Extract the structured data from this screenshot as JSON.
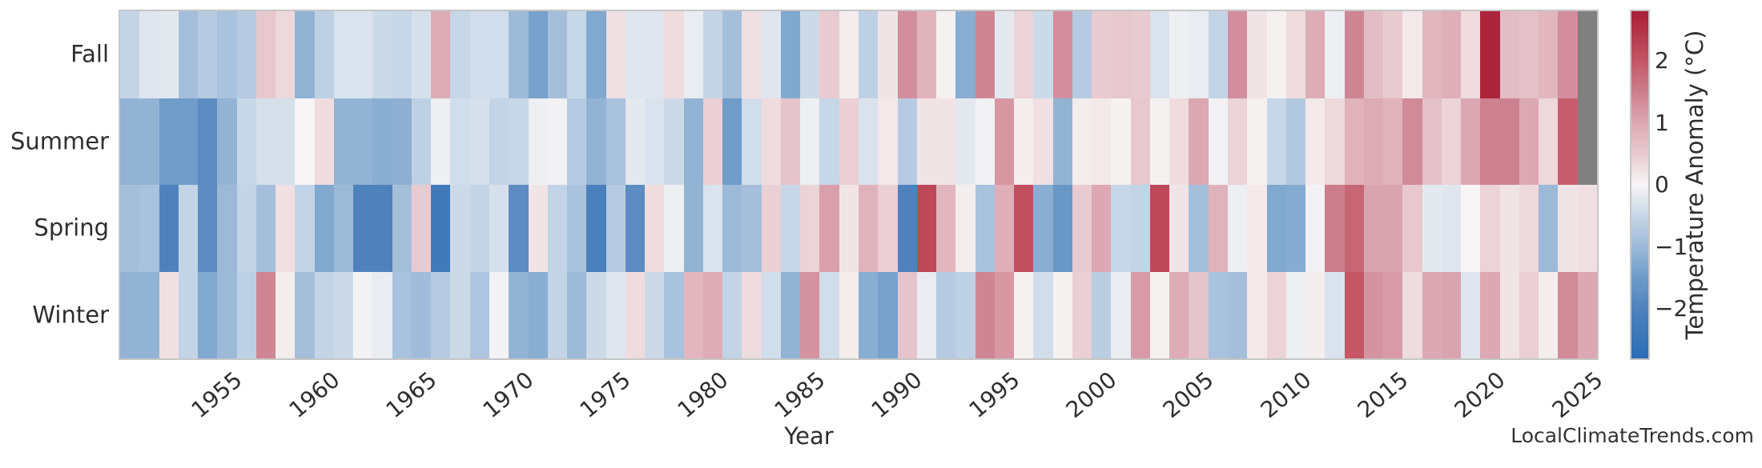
{
  "watermark": "LocalClimateTrends.com",
  "colors": {
    "background": "#ffffff",
    "frame": "#c6c6c6",
    "text": "#2e2e2e",
    "missing": "#808080",
    "colormap_anchors": [
      {
        "value": -2.8,
        "color": "#2b6cb5"
      },
      {
        "value": -2.0,
        "color": "#4f82bc"
      },
      {
        "value": -1.5,
        "color": "#6f9cc8"
      },
      {
        "value": -1.0,
        "color": "#9cb9d8"
      },
      {
        "value": -0.5,
        "color": "#c7d7e7"
      },
      {
        "value": 0.0,
        "color": "#f7f5f5"
      },
      {
        "value": 0.5,
        "color": "#e8cbd1"
      },
      {
        "value": 1.0,
        "color": "#dca8b3"
      },
      {
        "value": 1.5,
        "color": "#cc7d8c"
      },
      {
        "value": 2.0,
        "color": "#c45666"
      },
      {
        "value": 2.8,
        "color": "#a81e37"
      }
    ]
  },
  "chart_data": {
    "type": "heatmap",
    "title": "",
    "xlabel": "Year",
    "ylabel": "",
    "year_start": 1950,
    "year_end": 2025,
    "x_ticks": [
      1955,
      1960,
      1965,
      1970,
      1975,
      1980,
      1985,
      1990,
      1995,
      2000,
      2005,
      2010,
      2015,
      2020,
      2025
    ],
    "rows": [
      "Fall",
      "Summer",
      "Spring",
      "Winter"
    ],
    "colorbar": {
      "label": "Temperature Anomaly (°C)",
      "ticks": [
        2,
        1,
        0,
        -1,
        -2
      ],
      "vmin": -2.8,
      "vmax": 2.8
    },
    "legend_note": "null = missing data (gray cell)",
    "series": [
      {
        "name": "Fall",
        "values": [
          -0.55,
          -0.25,
          -0.2,
          -0.9,
          -0.7,
          -0.85,
          -0.7,
          0.55,
          0.35,
          -1.1,
          -0.6,
          -0.3,
          -0.3,
          -0.45,
          -0.5,
          -0.35,
          0.95,
          -0.5,
          -0.4,
          -0.4,
          -1.0,
          -1.4,
          -0.9,
          -0.5,
          -1.3,
          0.25,
          -0.25,
          -0.25,
          0.3,
          -0.15,
          -0.55,
          -0.9,
          0.25,
          -0.25,
          -1.3,
          -0.45,
          0.5,
          0.1,
          -0.6,
          0.2,
          1.3,
          0.85,
          0.05,
          -1.2,
          1.4,
          -0.2,
          0.4,
          -0.45,
          1.3,
          -0.7,
          0.5,
          0.55,
          0.5,
          -0.3,
          -0.1,
          -0.15,
          -0.55,
          1.3,
          0.2,
          0.05,
          0.3,
          0.95,
          -0.1,
          1.4,
          0.7,
          0.5,
          0.15,
          0.8,
          0.9,
          0.3,
          2.7,
          0.7,
          0.65,
          0.8,
          1.3,
          null
        ]
      },
      {
        "name": "Summer",
        "values": [
          -1.1,
          -1.1,
          -1.5,
          -1.5,
          -1.8,
          -1.1,
          -0.5,
          -0.35,
          -0.35,
          0.0,
          0.3,
          -1.1,
          -1.1,
          -1.2,
          -1.15,
          -0.6,
          -0.1,
          -0.4,
          -0.35,
          -0.55,
          -0.5,
          -0.1,
          -0.05,
          -0.7,
          -1.1,
          -0.85,
          -0.2,
          -0.3,
          -0.45,
          -1.1,
          0.45,
          -1.5,
          -0.4,
          0.3,
          0.6,
          -0.1,
          -0.5,
          0.45,
          -0.3,
          0.15,
          -0.7,
          0.2,
          0.2,
          -0.2,
          -0.05,
          1.2,
          0.1,
          0.25,
          -1.1,
          0.1,
          0.15,
          0.05,
          0.55,
          0.05,
          0.3,
          1.0,
          -0.05,
          0.4,
          0.05,
          -0.5,
          -0.75,
          0.15,
          0.35,
          0.85,
          0.95,
          0.85,
          1.35,
          0.65,
          0.4,
          1.0,
          1.45,
          1.45,
          1.0,
          0.35,
          1.9,
          null
        ]
      },
      {
        "name": "Spring",
        "values": [
          -0.9,
          -0.85,
          -2.0,
          -0.55,
          -1.8,
          -1.0,
          -0.55,
          -0.9,
          0.25,
          -0.55,
          -1.3,
          -1.0,
          -2.0,
          -2.0,
          -0.9,
          0.5,
          -2.3,
          -0.45,
          -0.55,
          -0.35,
          -1.8,
          0.2,
          -0.55,
          -0.85,
          -2.1,
          -0.7,
          -1.8,
          0.3,
          -0.1,
          -1.1,
          -0.3,
          -1.0,
          -0.9,
          0.45,
          -0.5,
          0.4,
          1.1,
          0.2,
          0.85,
          0.45,
          -2.0,
          2.2,
          0.8,
          0.1,
          -0.85,
          0.9,
          2.1,
          -1.2,
          -1.6,
          0.5,
          1.0,
          -0.5,
          -0.55,
          2.2,
          0.2,
          -0.9,
          0.85,
          -0.1,
          0.15,
          -1.3,
          -1.25,
          -0.05,
          1.5,
          1.8,
          1.05,
          1.05,
          0.55,
          -0.2,
          -0.25,
          0.0,
          0.4,
          0.2,
          0.35,
          -1.0,
          0.2,
          0.25
        ]
      },
      {
        "name": "Winter",
        "values": [
          -1.1,
          -1.1,
          0.25,
          -0.55,
          -1.3,
          -1.0,
          -0.6,
          1.4,
          0.1,
          -0.9,
          -0.55,
          -0.45,
          -0.05,
          -0.15,
          -0.85,
          -0.95,
          -0.7,
          -0.45,
          -0.8,
          -0.05,
          -1.1,
          -1.2,
          -0.55,
          -1.0,
          -0.45,
          -0.25,
          0.3,
          -0.45,
          -0.85,
          0.8,
          0.95,
          -0.55,
          0.3,
          -0.4,
          -1.1,
          1.25,
          -0.4,
          0.1,
          -1.2,
          -1.4,
          0.6,
          -0.15,
          -0.7,
          -0.6,
          1.4,
          1.2,
          0.05,
          -0.4,
          0.05,
          0.45,
          -0.65,
          -0.15,
          1.15,
          0.05,
          0.95,
          0.6,
          -0.85,
          -0.9,
          0.15,
          0.4,
          -0.1,
          0.1,
          -0.3,
          2.0,
          1.25,
          1.15,
          0.3,
          1.0,
          1.05,
          -0.25,
          1.0,
          0.2,
          0.45,
          0.1,
          1.35,
          1.0
        ]
      }
    ]
  }
}
